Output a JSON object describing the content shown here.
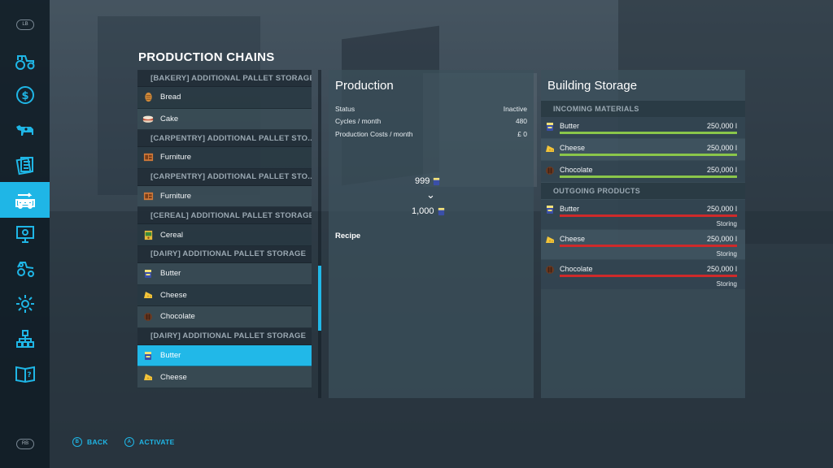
{
  "sidebar": {
    "top_hint": "LB",
    "bottom_hint": "RB",
    "items": [
      {
        "icon": "tractor-icon"
      },
      {
        "icon": "dollar-icon"
      },
      {
        "icon": "cow-icon"
      },
      {
        "icon": "documents-icon"
      },
      {
        "icon": "production-chain-icon",
        "active": true
      },
      {
        "icon": "presentation-icon"
      },
      {
        "icon": "vehicles-icon"
      },
      {
        "icon": "settings-gear-icon"
      },
      {
        "icon": "hierarchy-icon"
      },
      {
        "icon": "help-book-icon"
      }
    ]
  },
  "page_title": "PRODUCTION CHAINS",
  "list": {
    "rows": [
      {
        "type": "header",
        "label": "[BAKERY] ADDITIONAL PALLET STORAGE"
      },
      {
        "type": "item",
        "label": "Bread",
        "icon": "bread-icon"
      },
      {
        "type": "item",
        "label": "Cake",
        "icon": "cake-icon"
      },
      {
        "type": "header",
        "label": "[CARPENTRY] ADDITIONAL PALLET STO..."
      },
      {
        "type": "item",
        "label": "Furniture",
        "icon": "furniture-icon"
      },
      {
        "type": "header",
        "label": "[CARPENTRY] ADDITIONAL PALLET STO..."
      },
      {
        "type": "item",
        "label": "Furniture",
        "icon": "furniture-icon"
      },
      {
        "type": "header",
        "label": "[CEREAL] ADDITIONAL PALLET STORAGE"
      },
      {
        "type": "item",
        "label": "Cereal",
        "icon": "cereal-icon"
      },
      {
        "type": "header",
        "label": "[DAIRY] ADDITIONAL PALLET STORAGE"
      },
      {
        "type": "item",
        "label": "Butter",
        "icon": "butter-icon"
      },
      {
        "type": "item",
        "label": "Cheese",
        "icon": "cheese-icon"
      },
      {
        "type": "item",
        "label": "Chocolate",
        "icon": "chocolate-icon"
      },
      {
        "type": "header",
        "label": "[DAIRY] ADDITIONAL PALLET STORAGE"
      },
      {
        "type": "item",
        "label": "Butter",
        "icon": "butter-icon",
        "selected": true
      },
      {
        "type": "item",
        "label": "Cheese",
        "icon": "cheese-icon"
      }
    ]
  },
  "production": {
    "title": "Production",
    "status_label": "Status",
    "status_value": "Inactive",
    "cycles_label": "Cycles / month",
    "cycles_value": "480",
    "costs_label": "Production Costs / month",
    "costs_value": "£ 0",
    "recipe_label": "Recipe",
    "recipe_input": "999",
    "recipe_output": "1,000",
    "arrow": "⌄"
  },
  "storage": {
    "title": "Building Storage",
    "incoming_label": "INCOMING MATERIALS",
    "outgoing_label": "OUTGOING PRODUCTS",
    "incoming": [
      {
        "name": "Butter",
        "amount": "250,000 l",
        "icon": "butter-icon",
        "fill": 1.0
      },
      {
        "name": "Cheese",
        "amount": "250,000 l",
        "icon": "cheese-icon",
        "fill": 1.0
      },
      {
        "name": "Chocolate",
        "amount": "250,000 l",
        "icon": "chocolate-icon",
        "fill": 1.0
      }
    ],
    "outgoing": [
      {
        "name": "Butter",
        "amount": "250,000 l",
        "icon": "butter-icon",
        "fill": 1.0,
        "state": "Storing"
      },
      {
        "name": "Cheese",
        "amount": "250,000 l",
        "icon": "cheese-icon",
        "fill": 1.0,
        "state": "Storing"
      },
      {
        "name": "Chocolate",
        "amount": "250,000 l",
        "icon": "chocolate-icon",
        "fill": 1.0,
        "state": "Storing"
      }
    ],
    "colors": {
      "incoming_bar": "#8ac64a",
      "outgoing_bar": "#cf2a2a",
      "accent": "#21b8e8"
    }
  },
  "footer": {
    "back_key": "B",
    "back_label": "BACK",
    "activate_key": "A",
    "activate_label": "ACTIVATE"
  }
}
